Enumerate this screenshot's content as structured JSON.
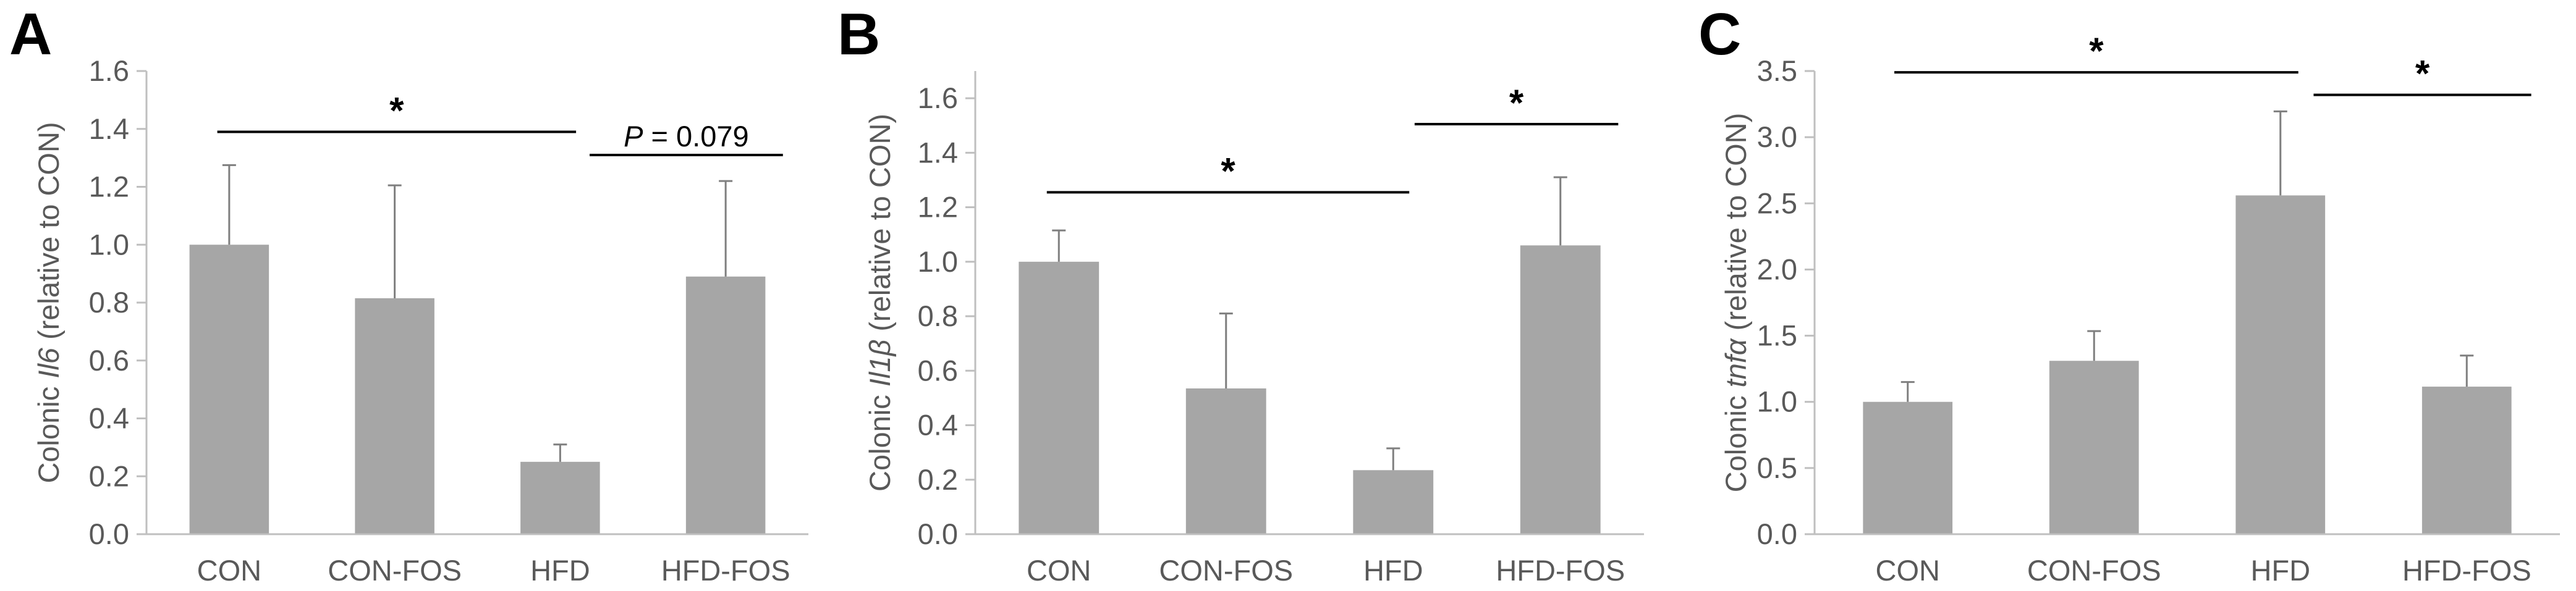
{
  "style": {
    "bar_color": "#a6a6a6",
    "axis_color": "#bfbfbf",
    "error_color": "#7f7f7f",
    "text_color": "#595959",
    "bracket_color": "#000000"
  },
  "chart_data": [
    {
      "type": "bar",
      "panel_label": "A",
      "categories": [
        "CON",
        "CON-FOS",
        "HFD",
        "HFD-FOS"
      ],
      "values": [
        1.0,
        0.815,
        0.25,
        0.89
      ],
      "errors": [
        0.275,
        0.39,
        0.06,
        0.33
      ],
      "ylabel": {
        "prefix": "Colonic ",
        "gene": "Il6",
        "suffix": " (relative to CON)"
      },
      "ylim": [
        0,
        1.6
      ],
      "yticks": [
        "0.0",
        "0.2",
        "0.4",
        "0.6",
        "0.8",
        "1.0",
        "1.2",
        "1.4",
        "1.6"
      ],
      "grid": false,
      "legend": "none",
      "annotations": [
        {
          "from": 0,
          "to": 2,
          "y": 1.39,
          "text": "*"
        },
        {
          "from": 2.25,
          "to": 3.25,
          "y": 1.31,
          "p_label": "P",
          "text": " = 0.079"
        }
      ]
    },
    {
      "type": "bar",
      "panel_label": "B",
      "categories": [
        "CON",
        "CON-FOS",
        "HFD",
        "HFD-FOS"
      ],
      "values": [
        1.0,
        0.535,
        0.235,
        1.06
      ],
      "errors": [
        0.115,
        0.275,
        0.08,
        0.25
      ],
      "ylabel": {
        "prefix": "Colonic ",
        "gene": "Il1β",
        "suffix": " (relative to CON)"
      },
      "ylim": [
        0,
        1.7
      ],
      "yticks": [
        "0.0",
        "0.2",
        "0.4",
        "0.6",
        "0.8",
        "1.0",
        "1.2",
        "1.4",
        "1.6"
      ],
      "grid": false,
      "legend": "none",
      "annotations": [
        {
          "from": 0,
          "to": 2,
          "y": 1.255,
          "text": "*"
        },
        {
          "from": 2.2,
          "to": 3.25,
          "y": 1.505,
          "text": "*"
        }
      ]
    },
    {
      "type": "bar",
      "panel_label": "C",
      "categories": [
        "CON",
        "CON-FOS",
        "HFD",
        "HFD-FOS"
      ],
      "values": [
        1.0,
        1.31,
        2.56,
        1.115
      ],
      "errors": [
        0.15,
        0.225,
        0.635,
        0.235
      ],
      "ylabel": {
        "prefix": "Colonic ",
        "gene": "tnfα",
        "suffix": " (relative to CON)"
      },
      "ylim": [
        0,
        3.5
      ],
      "yticks": [
        "0.0",
        "0.5",
        "1.0",
        "1.5",
        "2.0",
        "2.5",
        "3.0",
        "3.5"
      ],
      "grid": false,
      "legend": "none",
      "annotations": [
        {
          "from": 0,
          "to": 2,
          "y": 3.49,
          "text": "*"
        },
        {
          "from": 2.25,
          "to": 3.25,
          "y": 3.32,
          "text": "*"
        }
      ]
    }
  ]
}
